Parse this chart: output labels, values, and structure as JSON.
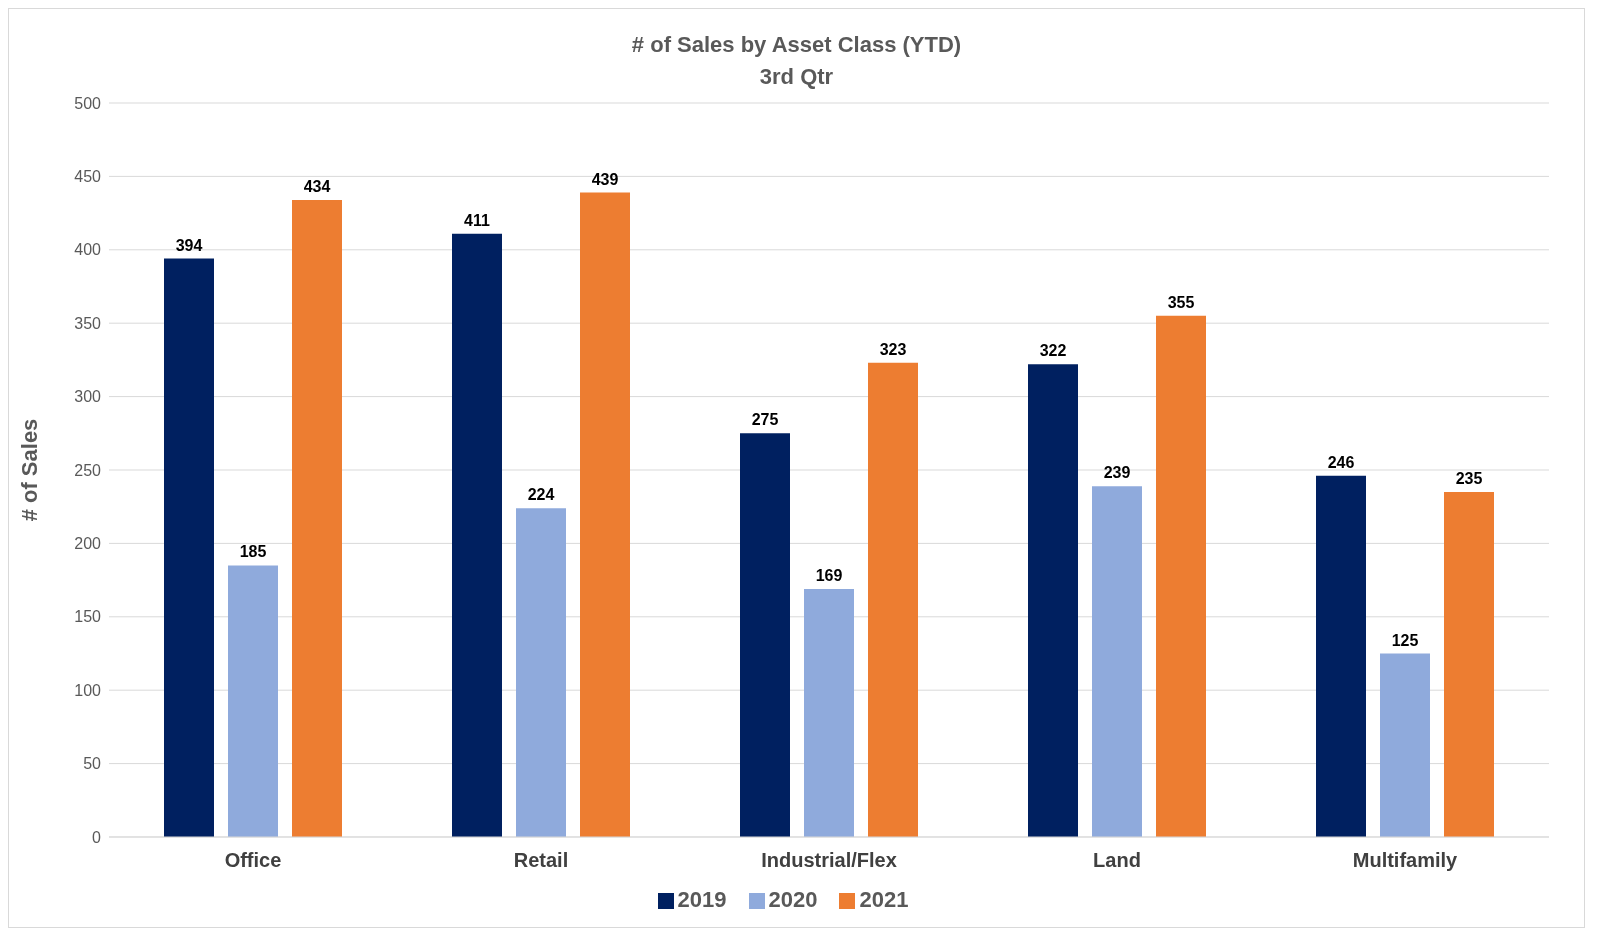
{
  "chart_data": {
    "type": "bar",
    "title": "# of Sales by Asset Class (YTD)",
    "subtitle": "3rd Qtr",
    "ylabel": "# of Sales",
    "categories": [
      "Office",
      "Retail",
      "Industrial/Flex",
      "Land",
      "Multifamily"
    ],
    "series": [
      {
        "name": "2019",
        "color": "#002060",
        "values": [
          394,
          411,
          275,
          322,
          246
        ]
      },
      {
        "name": "2020",
        "color": "#8faadc",
        "values": [
          185,
          224,
          169,
          239,
          125
        ]
      },
      {
        "name": "2021",
        "color": "#ed7d31",
        "values": [
          434,
          439,
          323,
          355,
          235
        ]
      }
    ],
    "ylim": [
      0,
      500
    ],
    "yticks": [
      0,
      50,
      100,
      150,
      200,
      250,
      300,
      350,
      400,
      450,
      500
    ],
    "grid": "y",
    "legend": "bottom",
    "data_labels": true
  }
}
